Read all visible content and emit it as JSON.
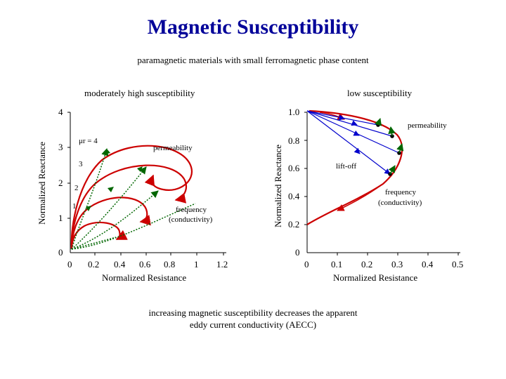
{
  "title": "Magnetic Susceptibility",
  "subtitle": "paramagnetic materials with small ferromagnetic phase content",
  "caption": "increasing magnetic susceptibility decreases the apparent eddy current conductivity (AECC)",
  "colors": {
    "title": "#000099",
    "red_curve": "#cc0000",
    "green_arrow": "#006600",
    "blue_arrow": "#0000cc"
  },
  "left_panel": {
    "heading": "moderately high susceptibility",
    "y_axis_label": "Normalized Reactance",
    "x_axis_label": "Normalized Resistance",
    "x_ticks": [
      "0",
      "0.2",
      "0.4",
      "0.6",
      "0.8",
      "1",
      "1.2"
    ],
    "y_ticks": [
      "0",
      "1",
      "2",
      "3",
      "4"
    ],
    "curve_labels": {
      "mu4": "μr = 4",
      "mu3": "3",
      "mu2": "2",
      "mu1": "1"
    },
    "permeability_label": "permeability",
    "frequency_label": "frequency",
    "conductivity_label": "(conductivity)"
  },
  "right_panel": {
    "heading": "low susceptibility",
    "y_axis_label": "Normalized Reactance",
    "x_axis_label": "Normalized Resistance",
    "x_ticks": [
      "0",
      "0.1",
      "0.2",
      "0.3",
      "0.4",
      "0.5"
    ],
    "y_ticks": [
      "0",
      "0.2",
      "0.4",
      "0.6",
      "0.8",
      "1.0"
    ],
    "permeability_label": "permeability",
    "liftoff_label": "lift-off",
    "frequency_label": "frequency",
    "conductivity_label": "(conductivity)"
  }
}
